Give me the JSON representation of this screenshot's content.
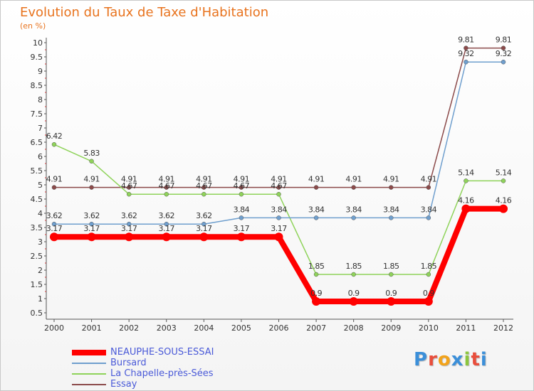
{
  "title": "Evolution du Taux de Taxe d'Habitation",
  "unit_label": "(en %)",
  "chart_data": {
    "type": "line",
    "title": "Evolution du Taux de Taxe d'Habitation",
    "ylabel": "(en %)",
    "xlabel": "",
    "x": [
      "2000",
      "2001",
      "2002",
      "2003",
      "2004",
      "2005",
      "2006",
      "2007",
      "2008",
      "2009",
      "2010",
      "2011",
      "2012"
    ],
    "ylim": [
      0.5,
      10
    ],
    "yticks": [
      "0.5",
      "1",
      "1.5",
      "2",
      "2.5",
      "3",
      "3.5",
      "4",
      "4.5",
      "5",
      "5.5",
      "6",
      "6.5",
      "7",
      "7.5",
      "8",
      "8.5",
      "9",
      "9.5",
      "10"
    ],
    "grid": false,
    "legend_position": "bottom-left",
    "series": [
      {
        "name": "NEAUPHE-SOUS-ESSAI",
        "color": "#ff0000",
        "values": [
          3.17,
          3.17,
          3.17,
          3.17,
          3.17,
          3.17,
          3.17,
          0.9,
          0.9,
          0.9,
          0.9,
          4.16,
          4.16
        ],
        "labels": [
          "3.17",
          "3.17",
          "3.17",
          "3.17",
          "3.17",
          "3.17",
          "3.17",
          "0.9",
          "0.9",
          "0.9",
          "0.9",
          "4.16",
          "4.16"
        ]
      },
      {
        "name": "Bursard",
        "color": "#6f9fce",
        "values": [
          3.62,
          3.62,
          3.62,
          3.62,
          3.62,
          3.84,
          3.84,
          3.84,
          3.84,
          3.84,
          3.84,
          9.32,
          9.32
        ],
        "labels": [
          "3.62",
          "3.62",
          "3.62",
          "3.62",
          "3.62",
          "3.84",
          "3.84",
          "3.84",
          "3.84",
          "3.84",
          "3.84",
          "9.32",
          "9.32"
        ]
      },
      {
        "name": "La Chapelle-près-Sées",
        "color": "#8fd35a",
        "values": [
          6.42,
          5.83,
          4.67,
          4.67,
          4.67,
          4.67,
          4.67,
          1.85,
          1.85,
          1.85,
          1.85,
          5.14,
          5.14
        ],
        "labels": [
          "6.42",
          "5.83",
          "4.67",
          "4.67",
          "4.67",
          "4.67",
          "4.67",
          "1.85",
          "1.85",
          "1.85",
          "1.85",
          "5.14",
          "5.14"
        ]
      },
      {
        "name": "Essay",
        "color": "#8b4a4a",
        "values": [
          4.91,
          4.91,
          4.91,
          4.91,
          4.91,
          4.91,
          4.91,
          4.91,
          4.91,
          4.91,
          4.91,
          9.81,
          9.81
        ],
        "labels": [
          "4.91",
          "4.91",
          "4.91",
          "4.91",
          "4.91",
          "4.91",
          "4.91",
          "4.91",
          "4.91",
          "4.91",
          "4.91",
          "9.81",
          "9.81"
        ]
      }
    ]
  },
  "legend": {
    "items": [
      {
        "label": "NEAUPHE-SOUS-ESSAI",
        "color": "#ff0000"
      },
      {
        "label": "Bursard",
        "color": "#6f9fce"
      },
      {
        "label": "La Chapelle-près-Sées",
        "color": "#8fd35a"
      },
      {
        "label": "Essay",
        "color": "#8b4a4a"
      }
    ]
  },
  "logo": {
    "letters": [
      "P",
      "r",
      "o",
      "x",
      "i",
      "t",
      "i"
    ],
    "colors": [
      "#3b8fd9",
      "#e94e3c",
      "#f2a31b",
      "#3b8fd9",
      "#8cc63f",
      "#e94e3c",
      "#3b8fd9"
    ]
  }
}
